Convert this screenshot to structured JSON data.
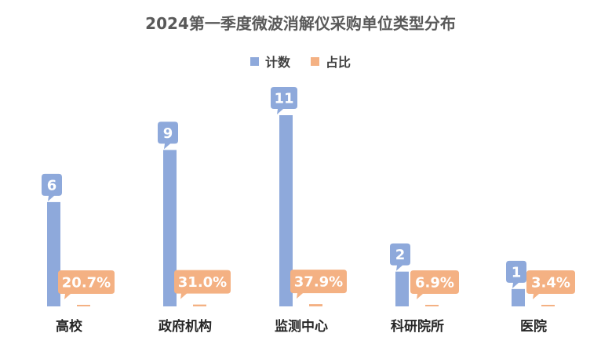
{
  "chart_data": {
    "type": "bar",
    "title": "2024第一季度微波消解仪采购单位类型分布",
    "categories": [
      "高校",
      "政府机构",
      "监测中心",
      "科研院所",
      "医院"
    ],
    "series": [
      {
        "name": "计数",
        "values": [
          6,
          9,
          11,
          2,
          1
        ],
        "color": "#8EA9DB",
        "labels": [
          "6",
          "9",
          "11",
          "2",
          "1"
        ]
      },
      {
        "name": "占比",
        "values": [
          20.7,
          31.0,
          37.9,
          6.9,
          3.4
        ],
        "color": "#F4B183",
        "labels": [
          "20.7%",
          "31.0%",
          "37.9%",
          "6.9%",
          "3.4%"
        ]
      }
    ],
    "legend_position": "top",
    "grid": false
  }
}
